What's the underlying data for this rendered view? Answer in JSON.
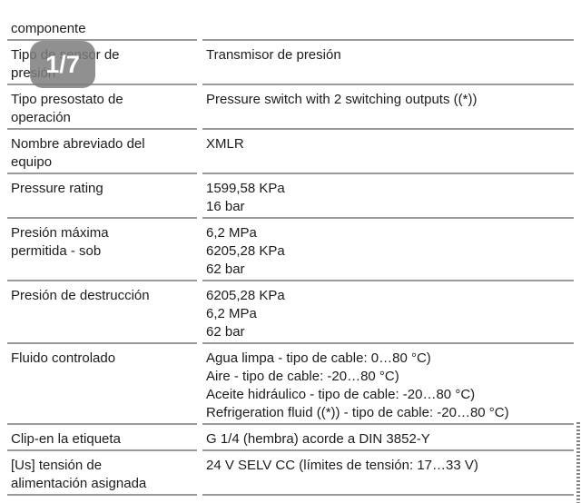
{
  "page_indicator": {
    "label": "1/7"
  },
  "spec_table": {
    "top_partial_label": "componente",
    "rows": [
      {
        "label": "Tipo de sensor de\npresión",
        "value": "Transmisor de presión"
      },
      {
        "label": "Tipo presostato de\noperación",
        "value": "Pressure switch with 2 switching outputs ((*))"
      },
      {
        "label": "Nombre abreviado del\nequipo",
        "value": "XMLR"
      },
      {
        "label": "Pressure rating",
        "value": "1599,58 KPa\n16 bar"
      },
      {
        "label": "Presión máxima\npermitida - sob",
        "value": "6,2 MPa\n6205,28 KPa\n62 bar"
      },
      {
        "label": "Presión de destrucción",
        "value": "6205,28 KPa\n6,2 MPa\n62 bar"
      },
      {
        "label": "Fluido controlado",
        "value": "Agua limpa - tipo de cable: 0…80 °C)\nAire - tipo de cable: -20…80 °C)\nAceite hidráulico - tipo de cable: -20…80 °C)\nRefrigeration fluid ((*)) - tipo de cable: -20…80 °C)"
      },
      {
        "label": "Clip-en la etiqueta",
        "value": "G 1/4 (hembra) acorde a DIN 3852-Y"
      },
      {
        "label": "[Us] tensión de\nalimentación asignada",
        "value": "24 V SELV CC (límites de tensión: 17…33 V)"
      }
    ]
  },
  "colors": {
    "rule": "#9a9a9a",
    "text": "#1c1c1c",
    "badge_bg": "rgba(124,124,124,0.85)",
    "badge_text": "#ffffff"
  }
}
